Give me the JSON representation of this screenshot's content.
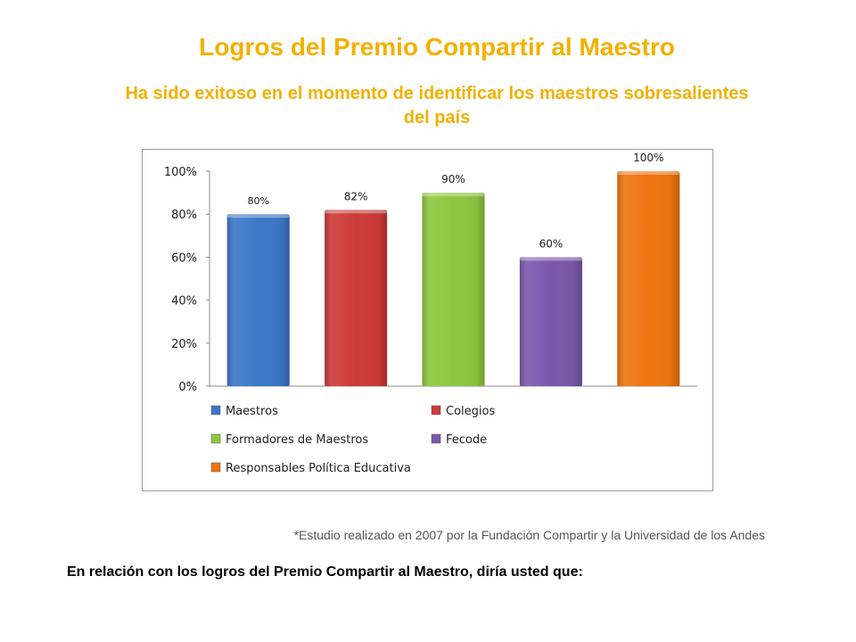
{
  "page": {
    "title": "Logros del Premio Compartir al Maestro",
    "subtitle": "Ha sido exitoso en el momento de identificar los maestros sobresalientes del país",
    "footnote": "*Estudio realizado en 2007 por la Fundación Compartir y la Universidad de los Andes",
    "question": "En relación con los logros del Premio Compartir al Maestro, diría usted que:"
  },
  "chart_data": {
    "type": "bar",
    "title": "",
    "xlabel": "",
    "ylabel": "",
    "categories": [
      "Maestros",
      "Colegios",
      "Formadores de Maestros",
      "Fecode",
      "Responsables Política Educativa"
    ],
    "values": [
      0.8,
      0.82,
      0.9,
      0.6,
      1.0
    ],
    "data_labels": [
      "80%",
      "82%",
      "90%",
      "60%",
      "100%"
    ],
    "colors": [
      "#3b77c8",
      "#cc3a37",
      "#8fc63e",
      "#7a58ab",
      "#f0740f"
    ],
    "ylim": [
      0,
      1
    ],
    "yticks": [
      0,
      0.2,
      0.4,
      0.6,
      0.8,
      1.0
    ],
    "ytick_labels": [
      "0%",
      "20%",
      "40%",
      "60%",
      "80%",
      "100%"
    ],
    "grid": false,
    "legend_position": "bottom",
    "legend": [
      "Maestros",
      "Colegios",
      "Formadores de Maestros",
      "Fecode",
      "Responsables Política Educativa"
    ]
  }
}
